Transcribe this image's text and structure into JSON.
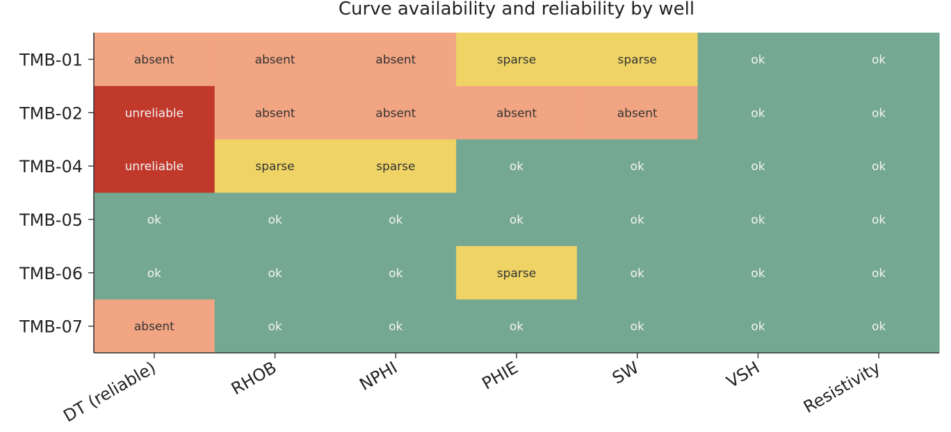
{
  "chart_data": {
    "type": "heatmap",
    "title": "Curve availability and reliability by well",
    "rows": [
      "TMB-01",
      "TMB-02",
      "TMB-04",
      "TMB-05",
      "TMB-06",
      "TMB-07"
    ],
    "columns": [
      "DT (reliable)",
      "RHOB",
      "NPHI",
      "PHIE",
      "SW",
      "VSH",
      "Resistivity"
    ],
    "values": [
      [
        "absent",
        "absent",
        "absent",
        "sparse",
        "sparse",
        "ok",
        "ok"
      ],
      [
        "unreliable",
        "absent",
        "absent",
        "absent",
        "absent",
        "ok",
        "ok"
      ],
      [
        "unreliable",
        "sparse",
        "sparse",
        "ok",
        "ok",
        "ok",
        "ok"
      ],
      [
        "ok",
        "ok",
        "ok",
        "ok",
        "ok",
        "ok",
        "ok"
      ],
      [
        "ok",
        "ok",
        "ok",
        "sparse",
        "ok",
        "ok",
        "ok"
      ],
      [
        "absent",
        "ok",
        "ok",
        "ok",
        "ok",
        "ok",
        "ok"
      ]
    ],
    "status_colors": {
      "ok": "#74a892",
      "sparse": "#efd465",
      "absent": "#f2a582",
      "unreliable": "#c0392b"
    },
    "label_colors": {
      "ok": "#f4f4f4",
      "sparse": "#333333",
      "absent": "#333333",
      "unreliable": "#f4f4f4"
    },
    "grid": false,
    "legend": "none"
  }
}
